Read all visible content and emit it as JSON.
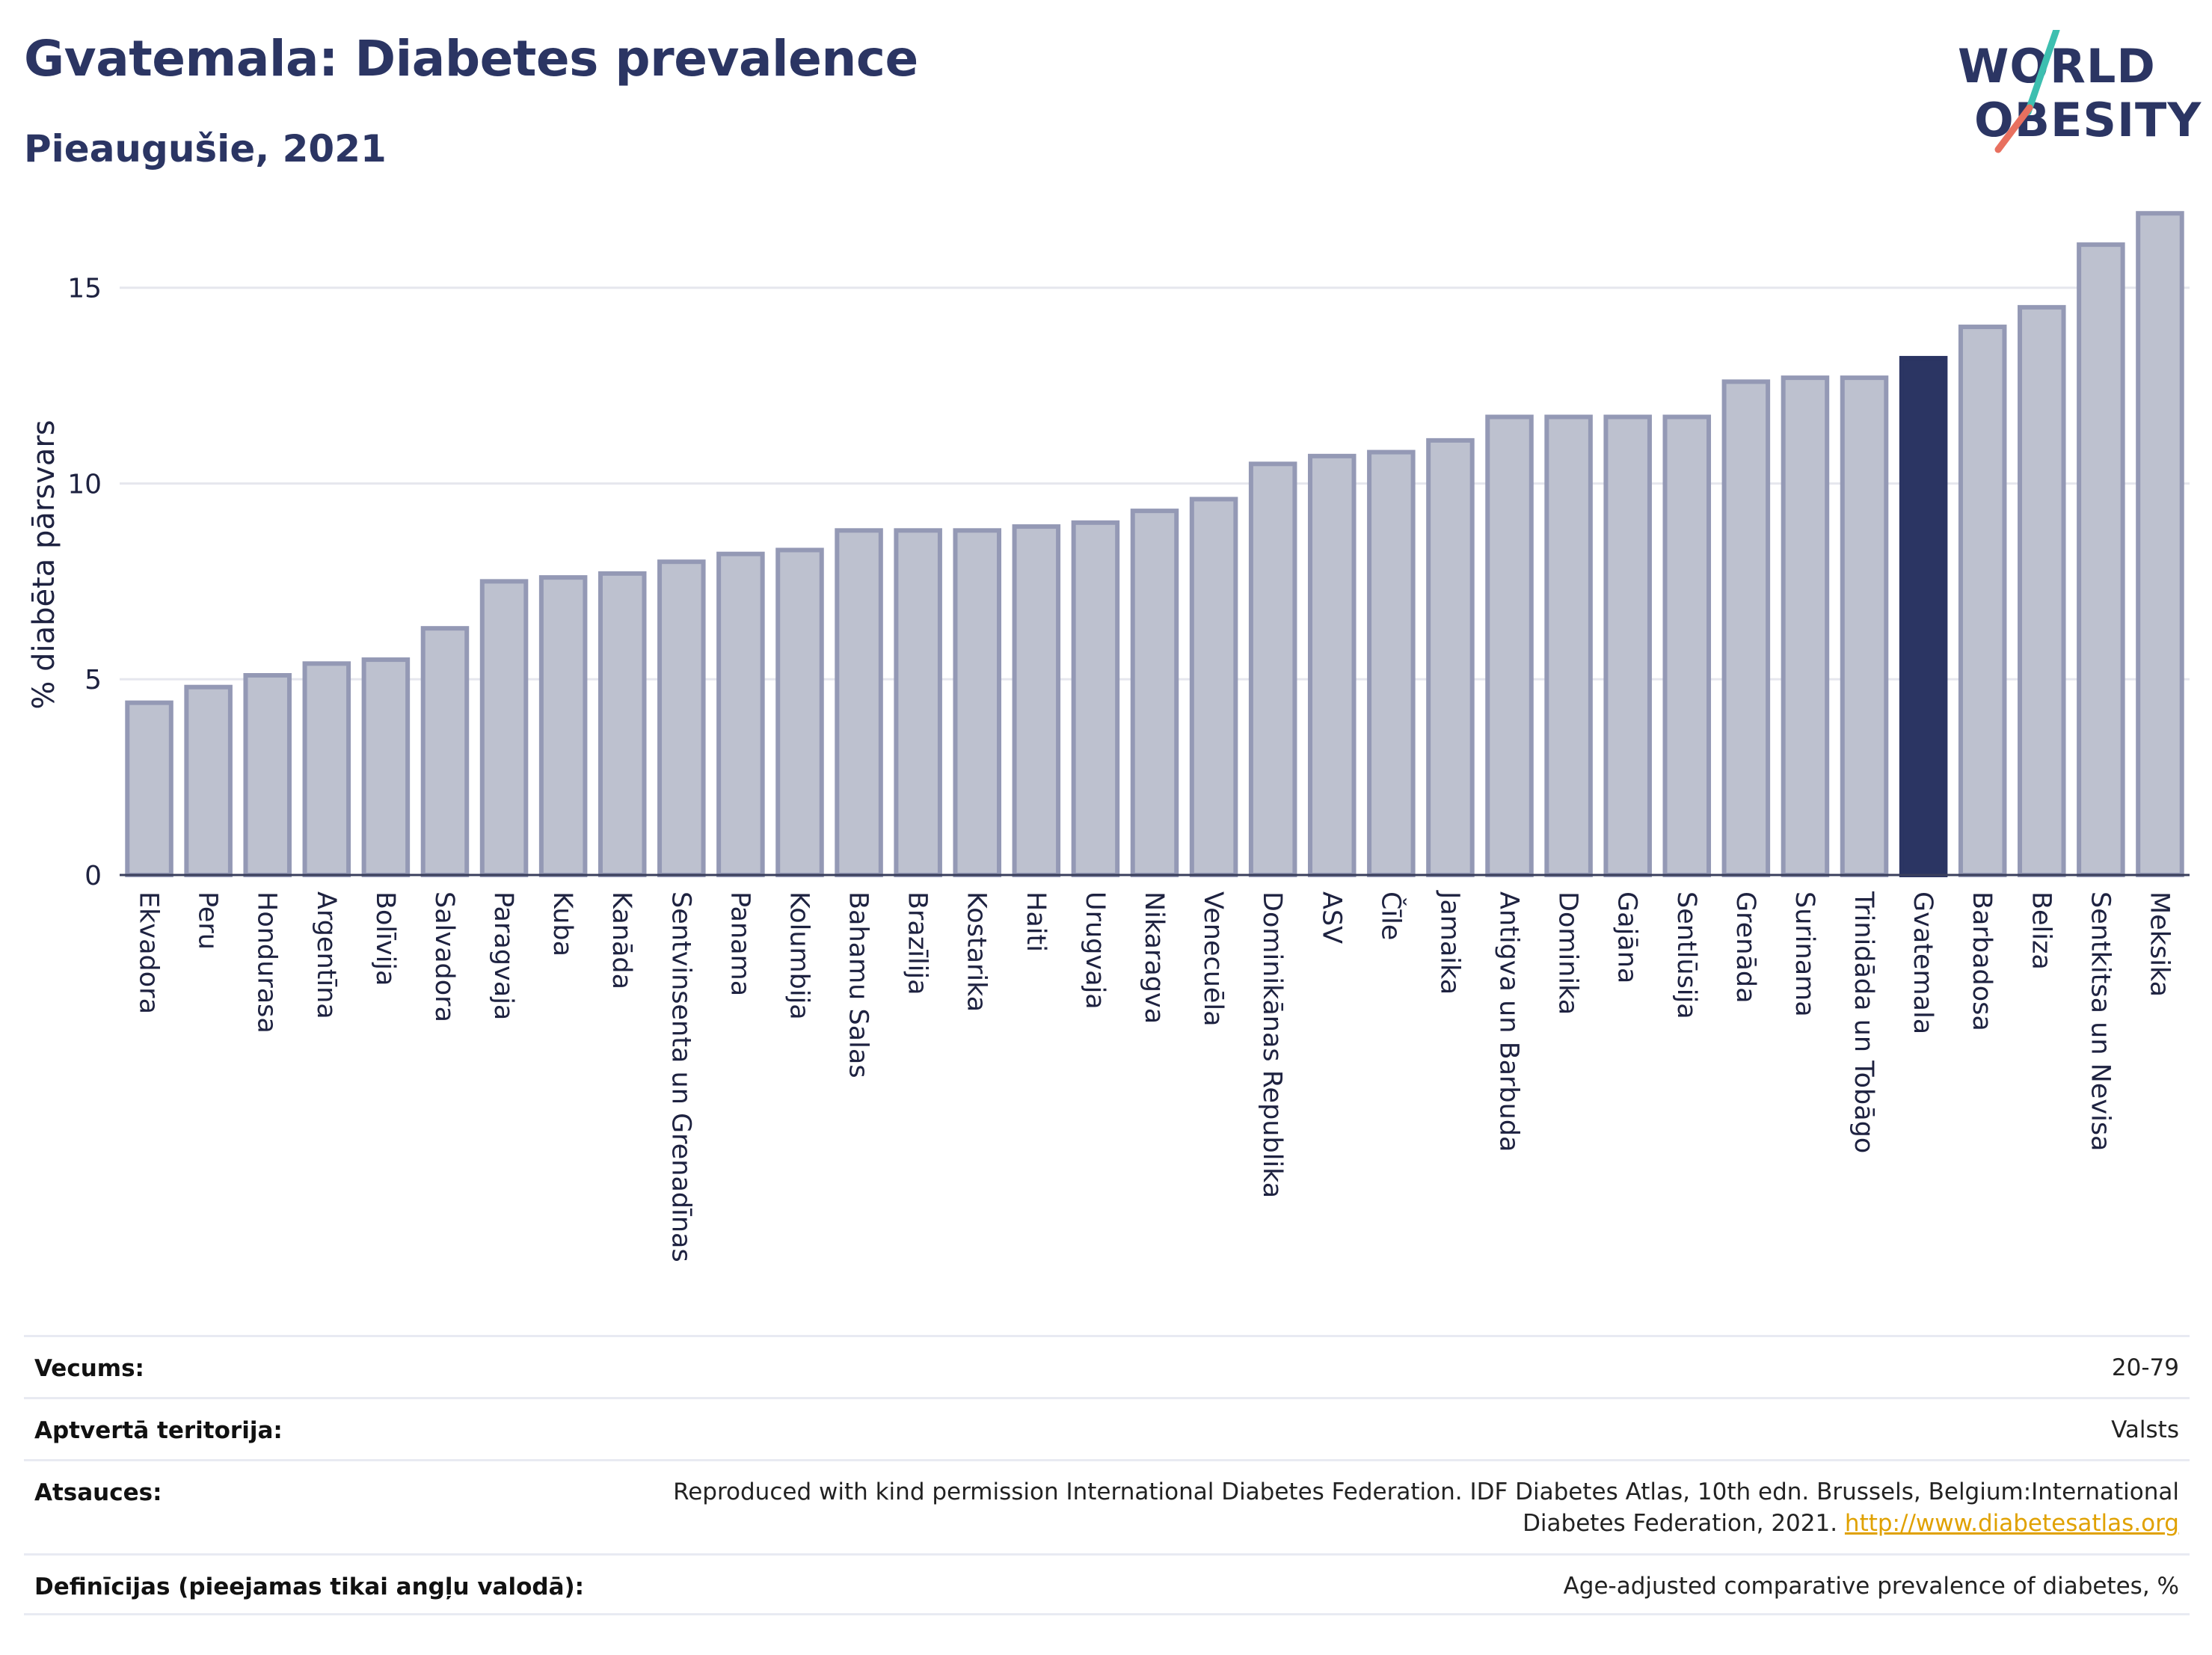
{
  "header": {
    "title": "Gvatemala: Diabetes prevalence",
    "subtitle": "Pieaugušie, 2021"
  },
  "logo": {
    "line1": "WORLD",
    "line2": "OBESITY",
    "accent_teal": "#3dbfb0",
    "accent_coral": "#e8705f"
  },
  "chart_data": {
    "type": "bar",
    "ylabel": "% diabēta pārsvars",
    "xlabel": "",
    "ylim": [
      0,
      17
    ],
    "yticks": [
      0,
      5,
      10,
      15
    ],
    "grid": true,
    "highlight": "Gvatemala",
    "colors": {
      "bar_fill": "#bdc1cf",
      "bar_stroke": "#9499b5",
      "highlight": "#2b3563"
    },
    "categories": [
      "Ekvadora",
      "Peru",
      "Hondurasa",
      "Argentīna",
      "Bolīvija",
      "Salvadora",
      "Paragvaja",
      "Kuba",
      "Kanāda",
      "Sentvinsenta un Grenadīnas",
      "Panama",
      "Kolumbija",
      "Bahamu Salas",
      "Brazīlija",
      "Kostarika",
      "Haiti",
      "Urugvaja",
      "Nikaragva",
      "Venecuēla",
      "Dominikānas Republika",
      "ASV",
      "Čīle",
      "Jamaika",
      "Antigva un Barbuda",
      "Dominika",
      "Gajāna",
      "Sentlūsija",
      "Grenāda",
      "Surinama",
      "Trinidāda un Tobāgo",
      "Gvatemala",
      "Barbadosa",
      "Beliza",
      "Sentkitsa un Nevisa",
      "Meksika"
    ],
    "values": [
      4.4,
      4.8,
      5.1,
      5.4,
      5.5,
      6.3,
      7.5,
      7.6,
      7.7,
      8.0,
      8.2,
      8.3,
      8.8,
      8.8,
      8.8,
      8.9,
      9.0,
      9.3,
      9.6,
      10.5,
      10.7,
      10.8,
      11.1,
      11.7,
      11.7,
      11.7,
      11.7,
      12.6,
      12.7,
      12.7,
      13.2,
      14.0,
      14.5,
      16.1,
      16.9
    ]
  },
  "info": {
    "rows": [
      {
        "key": "Vecums:",
        "value": "20-79"
      },
      {
        "key": "Aptvertā teritorija:",
        "value": "Valsts"
      },
      {
        "key": "Atsauces:",
        "value_line1": "Reproduced with kind permission International Diabetes Federation.  IDF Diabetes Atlas, 10th edn. Brussels, Belgium:International",
        "value_line2": "Diabetes Federation, 2021.",
        "link": "http://www.diabetesatlas.org"
      },
      {
        "key": "Definīcijas (pieejamas tikai angļu valodā):",
        "value": "Age-adjusted comparative prevalence of diabetes, %"
      }
    ]
  }
}
